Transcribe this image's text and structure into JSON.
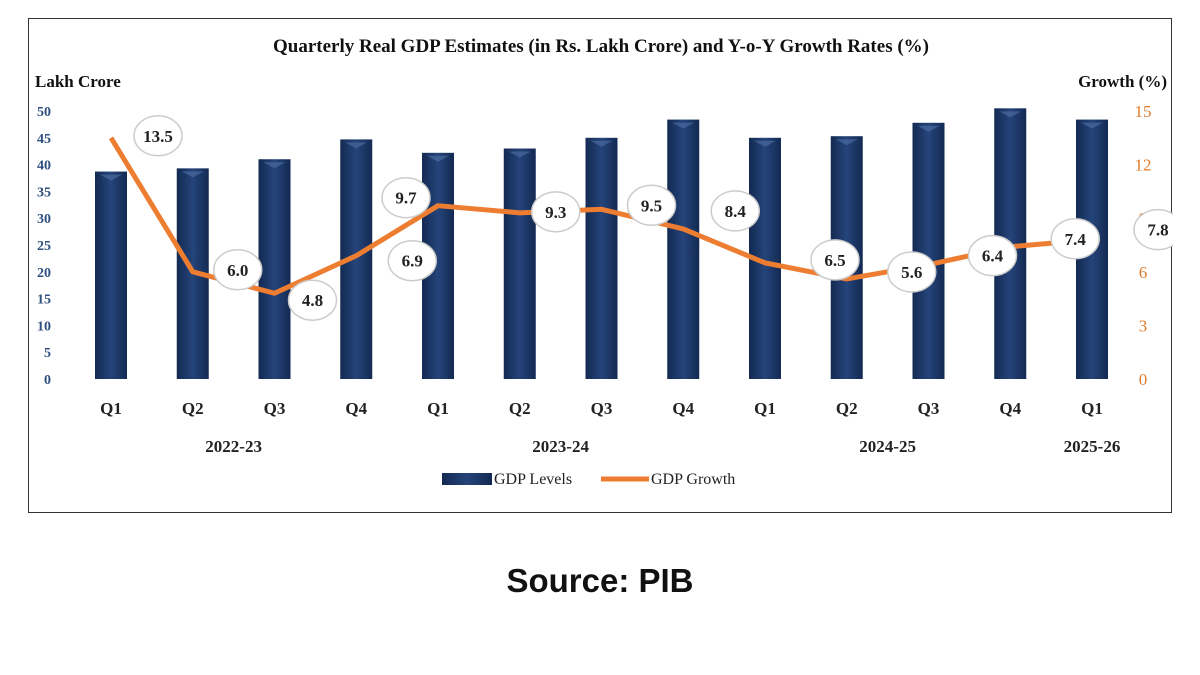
{
  "chart_data": {
    "type": "bar+line",
    "title": "Quarterly Real GDP Estimates (in Rs. Lakh Crore) and Y-o-Y Growth Rates (%)",
    "ylabel_left": "Lakh Crore",
    "ylabel_right": "Growth (%)",
    "ylim_left": [
      0,
      50
    ],
    "yticks_left": [
      0,
      5,
      10,
      15,
      20,
      25,
      30,
      35,
      40,
      45,
      50
    ],
    "ylim_right": [
      0,
      15
    ],
    "yticks_right": [
      0,
      3,
      6,
      9,
      12,
      15
    ],
    "categories": [
      "Q1",
      "Q2",
      "Q3",
      "Q4",
      "Q1",
      "Q2",
      "Q3",
      "Q4",
      "Q1",
      "Q2",
      "Q3",
      "Q4",
      "Q1"
    ],
    "groups": [
      {
        "label": "2022-23",
        "start": 0,
        "end": 3
      },
      {
        "label": "2023-24",
        "start": 4,
        "end": 7
      },
      {
        "label": "2024-25",
        "start": 8,
        "end": 11
      },
      {
        "label": "2025-26",
        "start": 12,
        "end": 12
      }
    ],
    "series": [
      {
        "name": "GDP Levels",
        "type": "bar",
        "axis": "left",
        "color": "#1f3864",
        "values": [
          38.7,
          39.3,
          41.0,
          44.7,
          42.2,
          43.0,
          45.0,
          48.4,
          45.0,
          45.3,
          47.8,
          50.5,
          48.4
        ]
      },
      {
        "name": "GDP Growth",
        "type": "line",
        "axis": "right",
        "color": "#ed7d31",
        "values": [
          13.5,
          6.0,
          4.8,
          6.9,
          9.7,
          9.3,
          9.5,
          8.4,
          6.5,
          5.6,
          6.4,
          7.4,
          7.8
        ],
        "data_labels": [
          "13.5",
          "6.0",
          "4.8",
          "6.9",
          "9.7",
          "9.3",
          "9.5",
          "8.4",
          "6.5",
          "5.6",
          "6.4",
          "7.4",
          "7.8"
        ]
      }
    ],
    "legend": "bottom",
    "grid": false,
    "colors": {
      "left_ticks": "#2f4f7f",
      "right_ticks": "#e07b2a"
    }
  },
  "source": "Source: PIB"
}
